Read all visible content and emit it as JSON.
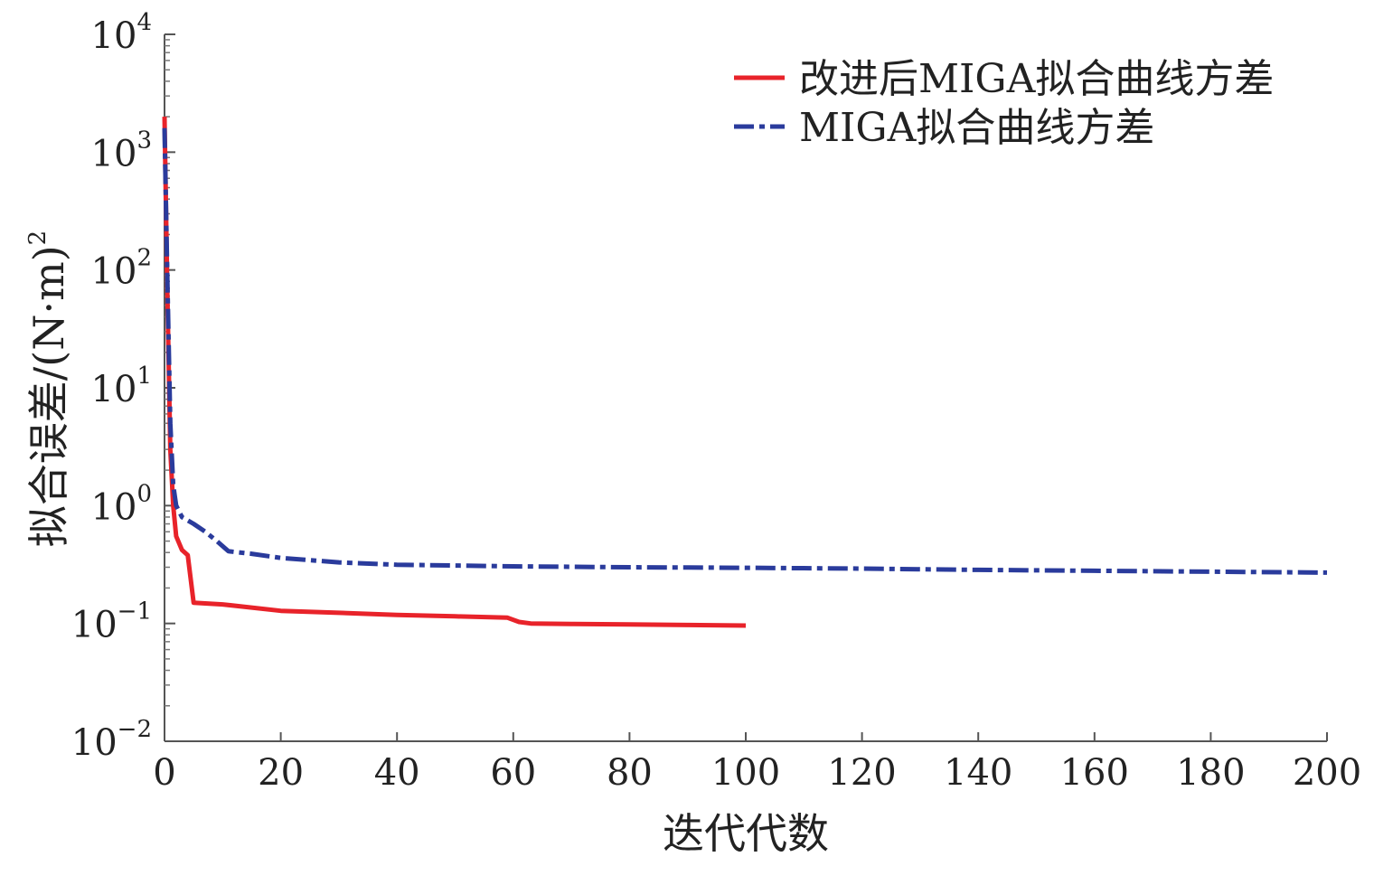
{
  "chart_data": {
    "type": "line",
    "title": "",
    "xlabel": "迭代代数",
    "ylabel": "拟合误差/(N·m)²",
    "ylabel_parts": {
      "main": "拟合误差/(N·m)",
      "sup": "2"
    },
    "yscale": "log",
    "xlim": [
      0,
      200
    ],
    "ylim": [
      0.01,
      10000
    ],
    "x_ticks": [
      0,
      20,
      40,
      60,
      80,
      100,
      120,
      140,
      160,
      180,
      200
    ],
    "x_tick_labels": [
      "0",
      "20",
      "40",
      "60",
      "80",
      "100",
      "120",
      "140",
      "160",
      "180",
      "200"
    ],
    "y_ticks": [
      {
        "value": 0.01,
        "base": "10",
        "exp": "−2"
      },
      {
        "value": 0.1,
        "base": "10",
        "exp": "−1"
      },
      {
        "value": 1,
        "base": "10",
        "exp": "0"
      },
      {
        "value": 10,
        "base": "10",
        "exp": "1"
      },
      {
        "value": 100,
        "base": "10",
        "exp": "2"
      },
      {
        "value": 1000,
        "base": "10",
        "exp": "3"
      },
      {
        "value": 10000,
        "base": "10",
        "exp": "4"
      }
    ],
    "grid": false,
    "legend_position": "top-right",
    "series": [
      {
        "name": "改进后MIGA拟合曲线方差",
        "color": "#e8232a",
        "style": "solid",
        "points": [
          [
            0,
            2000
          ],
          [
            0.5,
            60
          ],
          [
            1,
            3
          ],
          [
            1.5,
            1.0
          ],
          [
            2,
            0.55
          ],
          [
            3,
            0.42
          ],
          [
            4,
            0.38
          ],
          [
            5,
            0.15
          ],
          [
            10,
            0.145
          ],
          [
            20,
            0.128
          ],
          [
            30,
            0.123
          ],
          [
            40,
            0.118
          ],
          [
            50,
            0.115
          ],
          [
            59,
            0.112
          ],
          [
            61,
            0.103
          ],
          [
            63,
            0.1
          ],
          [
            70,
            0.099
          ],
          [
            80,
            0.098
          ],
          [
            90,
            0.097
          ],
          [
            100,
            0.096
          ]
        ]
      },
      {
        "name": "MIGA拟合曲线方差",
        "color": "#2a3b9c",
        "style": "dashdot",
        "points": [
          [
            0,
            1600
          ],
          [
            0.5,
            80
          ],
          [
            1,
            5
          ],
          [
            1.5,
            1.5
          ],
          [
            2,
            1.0
          ],
          [
            3,
            0.8
          ],
          [
            5,
            0.7
          ],
          [
            7,
            0.6
          ],
          [
            9,
            0.5
          ],
          [
            11,
            0.41
          ],
          [
            15,
            0.39
          ],
          [
            20,
            0.36
          ],
          [
            30,
            0.33
          ],
          [
            40,
            0.315
          ],
          [
            60,
            0.305
          ],
          [
            80,
            0.3
          ],
          [
            100,
            0.297
          ],
          [
            120,
            0.292
          ],
          [
            140,
            0.285
          ],
          [
            160,
            0.28
          ],
          [
            180,
            0.275
          ],
          [
            200,
            0.27
          ]
        ]
      }
    ]
  }
}
